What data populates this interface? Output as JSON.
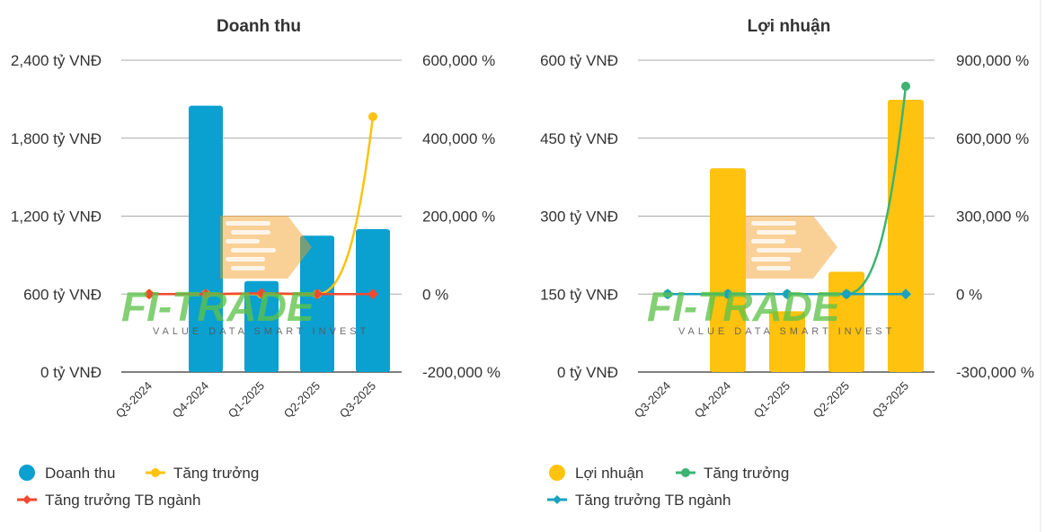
{
  "colors": {
    "revenue_bar": "#0aa0d0",
    "revenue_growth": "#ffc20e",
    "revenue_industry": "#f04a32",
    "profit_bar": "#ffc20e",
    "profit_growth": "#3cb371",
    "profit_industry": "#1aa1c1",
    "grid": "#999999",
    "watermark_green": "#5cc24a",
    "watermark_orange": "#f39a1d"
  },
  "watermark": {
    "brand": "FI-TRADE",
    "tagline": "VALUE DATA SMART INVEST"
  },
  "chart_data": [
    {
      "type": "bar+line",
      "title": "Doanh thu",
      "categories": [
        "Q3-2024",
        "Q4-2024",
        "Q1-2025",
        "Q2-2025",
        "Q3-2025"
      ],
      "bar_series": {
        "name": "Doanh thu",
        "values": [
          0,
          2050,
          700,
          1050,
          1100
        ],
        "unit": "tỷ VNĐ"
      },
      "line_series": [
        {
          "name": "Tăng trưởng",
          "values": [
            0,
            0,
            0,
            0,
            455000
          ],
          "axis": "right",
          "marker": "circle",
          "smooth": true
        },
        {
          "name": "Tăng trưởng TB ngành",
          "values": [
            0,
            0,
            2000,
            0,
            0
          ],
          "axis": "right",
          "marker": "diamond"
        }
      ],
      "left_axis": {
        "min": 0,
        "max": 2400,
        "ticks": [
          "0 tỷ VNĐ",
          "600 tỷ VNĐ",
          "1,200 tỷ VNĐ",
          "1,800 tỷ VNĐ",
          "2,400 tỷ VNĐ"
        ]
      },
      "right_axis": {
        "min": -200000,
        "max": 600000,
        "ticks": [
          "-200,000 %",
          "0 %",
          "200,000 %",
          "400,000 %",
          "600,000 %"
        ]
      },
      "legend": [
        {
          "label": "Doanh thu",
          "kind": "bar"
        },
        {
          "label": "Tăng trưởng",
          "kind": "line-circle"
        },
        {
          "label": "Tăng trưởng TB ngành",
          "kind": "line-diamond"
        }
      ]
    },
    {
      "type": "bar+line",
      "title": "Lợi nhuận",
      "categories": [
        "Q3-2024",
        "Q4-2024",
        "Q1-2025",
        "Q2-2025",
        "Q3-2025"
      ],
      "bar_series": {
        "name": "Lợi nhuận",
        "values": [
          0,
          392,
          117,
          193,
          524
        ],
        "unit": "tỷ VNĐ"
      },
      "line_series": [
        {
          "name": "Tăng trưởng",
          "values": [
            0,
            0,
            0,
            0,
            800000
          ],
          "axis": "right",
          "marker": "circle",
          "smooth": true
        },
        {
          "name": "Tăng trưởng TB ngành",
          "values": [
            0,
            0,
            0,
            0,
            0
          ],
          "axis": "right",
          "marker": "diamond"
        }
      ],
      "left_axis": {
        "min": 0,
        "max": 600,
        "ticks": [
          "0 tỷ VNĐ",
          "150 tỷ VNĐ",
          "300 tỷ VNĐ",
          "450 tỷ VNĐ",
          "600 tỷ VNĐ"
        ]
      },
      "right_axis": {
        "min": -300000,
        "max": 900000,
        "ticks": [
          "-300,000 %",
          "0 %",
          "300,000 %",
          "600,000 %",
          "900,000 %"
        ]
      },
      "legend": [
        {
          "label": "Lợi nhuận",
          "kind": "bar"
        },
        {
          "label": "Tăng trưởng",
          "kind": "line-circle"
        },
        {
          "label": "Tăng trưởng TB ngành",
          "kind": "line-diamond"
        }
      ]
    }
  ]
}
